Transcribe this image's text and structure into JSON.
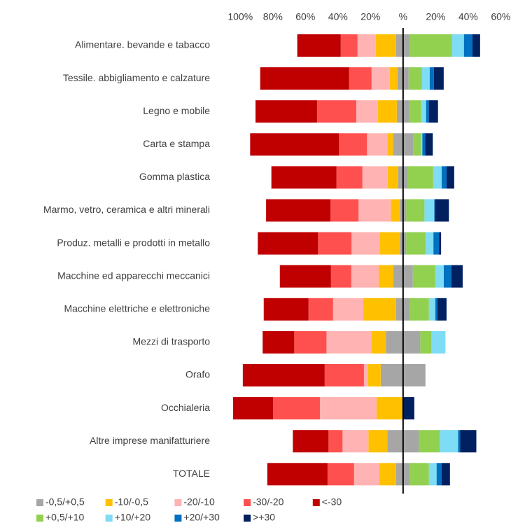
{
  "chart_data": {
    "type": "diverging-bar",
    "categories": [
      "Alimentare. bevande e tabacco",
      "Tessile. abbigliamento e calzature",
      "Legno e mobile",
      "Carta e stampa",
      "Gomma plastica",
      "Marmo, vetro, ceramica e altri minerali",
      "Produz. metalli e prodotti in metallo",
      "Macchine ed apparecchi meccanici",
      "Macchine elettriche e elettroniche",
      "Mezzi di trasporto",
      "Orafo",
      "Occhialeria",
      "Altre imprese manifatturiere",
      "TOTALE"
    ],
    "series": [
      {
        "name": "-0,5/+0,5",
        "color": "#a6a6a6",
        "values": [
          8.6,
          6.9,
          7.7,
          12.5,
          6.0,
          3.9,
          3.9,
          12.0,
          8.6,
          21.1,
          27.5,
          0,
          19.4,
          8.6
        ]
      },
      {
        "name": "-10/-0,5",
        "color": "#ffc000",
        "values": [
          -12.5,
          -4.7,
          -11.6,
          -3.4,
          -6.5,
          -5.6,
          -12.5,
          -9.0,
          -20.2,
          -9.0,
          -7.7,
          -16.3,
          -11.6,
          -10.3
        ]
      },
      {
        "name": "-20/-10",
        "color": "#ffb3b3",
        "values": [
          -11.2,
          -11.2,
          -13.3,
          -12.5,
          -15.5,
          -19.8,
          -17.2,
          -16.8,
          -18.5,
          -27.5,
          -2.6,
          -34.8,
          -15.9,
          -15.5
        ]
      },
      {
        "name": "-30/-20",
        "color": "#ff5050",
        "values": [
          -10.3,
          -13.8,
          -24.1,
          -17.2,
          -15.9,
          -17.2,
          -20.6,
          -12.5,
          -15.1,
          -19.8,
          -24.1,
          -28.8,
          -8.6,
          -16.3
        ]
      },
      {
        "name": "<-30",
        "color": "#c00000",
        "values": [
          -26.7,
          -54.6,
          -37.8,
          -54.6,
          -40.0,
          -39.6,
          -37.0,
          -31.4,
          -27.5,
          -19.4,
          -50.3,
          -24.5,
          -21.9,
          -37.0
        ]
      },
      {
        "name": "+0,5/+10",
        "color": "#92d050",
        "values": [
          25.8,
          8.2,
          7.3,
          4.7,
          15.5,
          11.2,
          12.0,
          13.8,
          11.6,
          6.9,
          0,
          0,
          12.9,
          11.6
        ]
      },
      {
        "name": "+10/+20",
        "color": "#7fdcf5",
        "values": [
          7.3,
          4.7,
          3.0,
          0.9,
          5.2,
          6.0,
          4.7,
          5.2,
          3.9,
          8.6,
          0,
          0,
          11.2,
          4.7
        ]
      },
      {
        "name": "+20/+30",
        "color": "#0070c0",
        "values": [
          5.2,
          2.6,
          1.7,
          1.7,
          3.0,
          0.4,
          3.4,
          4.7,
          1.3,
          0,
          0,
          0,
          1.3,
          3.0
        ]
      },
      {
        "name": ">+30",
        "color": "#002060",
        "values": [
          4.7,
          6.0,
          5.6,
          4.7,
          4.7,
          8.6,
          1.3,
          6.9,
          5.6,
          0,
          0,
          6.9,
          9.9,
          5.2
        ]
      }
    ],
    "xlim": [
      -110,
      65
    ],
    "xticks": [
      {
        "value": -100,
        "label": "100%"
      },
      {
        "value": -80,
        "label": "80%"
      },
      {
        "value": -60,
        "label": "60%"
      },
      {
        "value": -40,
        "label": "40%"
      },
      {
        "value": -20,
        "label": "20%"
      },
      {
        "value": 0,
        "label": "%"
      },
      {
        "value": 20,
        "label": "20%"
      },
      {
        "value": 40,
        "label": "40%"
      },
      {
        "value": 60,
        "label": "60%"
      }
    ],
    "grid": false,
    "legend": "bottom"
  }
}
